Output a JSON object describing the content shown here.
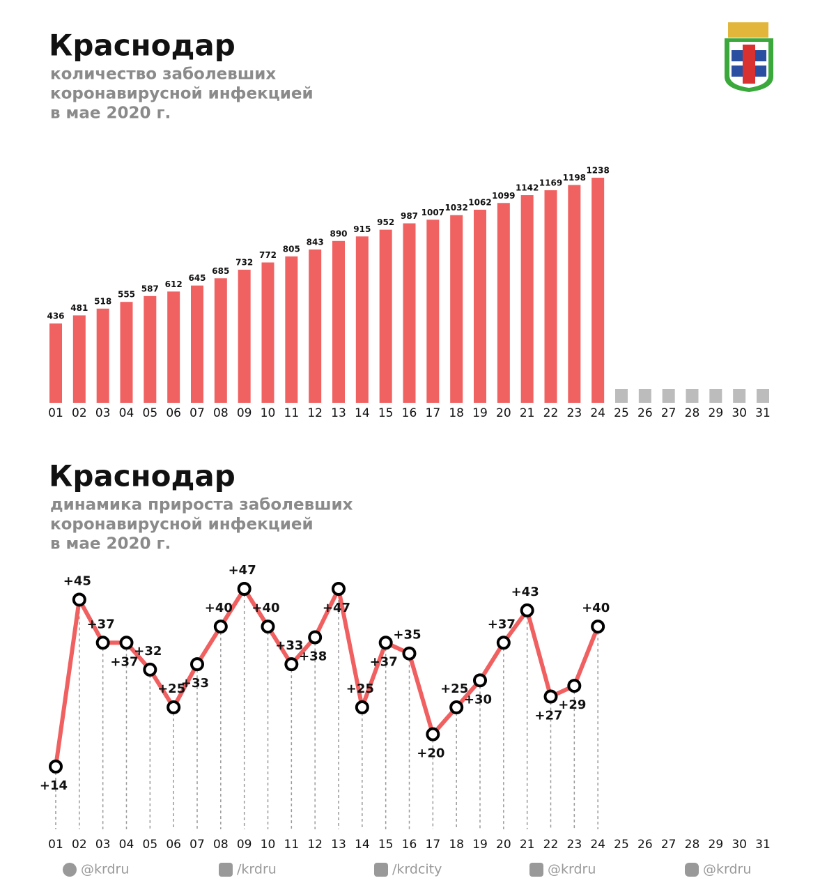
{
  "chart_data": [
    {
      "type": "bar",
      "title": "Краснодар",
      "subtitle": [
        "количество заболевших",
        "коронавирусной инфекцией",
        "в мае 2020 г."
      ],
      "categories": [
        "01",
        "02",
        "03",
        "04",
        "05",
        "06",
        "07",
        "08",
        "09",
        "10",
        "11",
        "12",
        "13",
        "14",
        "15",
        "16",
        "17",
        "18",
        "19",
        "20",
        "21",
        "22",
        "23",
        "24",
        "25",
        "26",
        "27",
        "28",
        "29",
        "30",
        "31"
      ],
      "values": [
        436,
        481,
        518,
        555,
        587,
        612,
        645,
        685,
        732,
        772,
        805,
        843,
        890,
        915,
        952,
        987,
        1007,
        1032,
        1062,
        1099,
        1142,
        1169,
        1198,
        1238,
        null,
        null,
        null,
        null,
        null,
        null,
        null
      ],
      "color": "#f06262"
    },
    {
      "type": "line",
      "title": "Краснодар",
      "subtitle": [
        "динамика прироста заболевших",
        "коронавирусной инфекцией",
        "в мае 2020 г."
      ],
      "categories": [
        "01",
        "02",
        "03",
        "04",
        "05",
        "06",
        "07",
        "08",
        "09",
        "10",
        "11",
        "12",
        "13",
        "14",
        "15",
        "16",
        "17",
        "18",
        "19",
        "20",
        "21",
        "22",
        "23",
        "24",
        "25",
        "26",
        "27",
        "28",
        "29",
        "30",
        "31"
      ],
      "values": [
        14,
        45,
        37,
        37,
        32,
        25,
        33,
        40,
        47,
        40,
        33,
        38,
        47,
        25,
        37,
        35,
        20,
        25,
        30,
        37,
        43,
        27,
        29,
        40,
        null,
        null,
        null,
        null,
        null,
        null,
        null
      ],
      "value_labels": [
        "+14",
        "+45",
        "+37",
        "+37",
        "+32",
        "+25",
        "+33",
        "+40",
        "+47",
        "+40",
        "+33",
        "+38",
        "+47",
        "+25",
        "+37",
        "+35",
        "+20",
        "+25",
        "+30",
        "+37",
        "+43",
        "+27",
        "+29",
        "+40",
        null,
        null,
        null,
        null,
        null,
        null,
        null
      ],
      "color": "#f06060"
    }
  ],
  "footer": {
    "links": [
      "@krdru",
      "/krdru",
      "/krdcity",
      "@krdru",
      "@krdru"
    ]
  }
}
